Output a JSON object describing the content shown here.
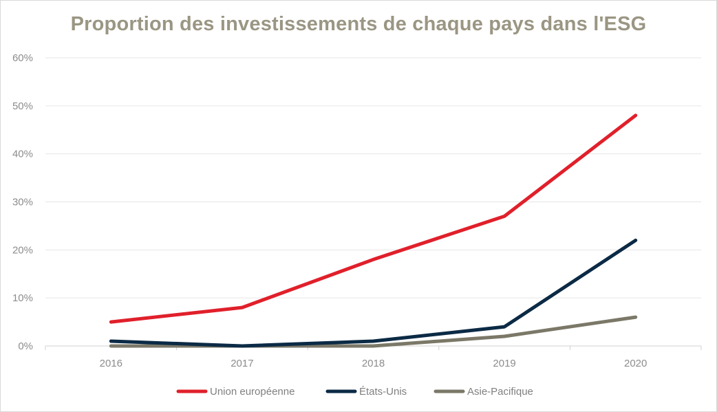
{
  "chart_data": {
    "type": "line",
    "title": "Proportion des investissements de chaque pays dans l'ESG",
    "categories": [
      "2016",
      "2017",
      "2018",
      "2019",
      "2020"
    ],
    "y_ticks": [
      "0%",
      "10%",
      "20%",
      "30%",
      "40%",
      "50%",
      "60%"
    ],
    "ylim": [
      0,
      60
    ],
    "y_unit": "%",
    "grid": true,
    "legend_position": "bottom",
    "series": [
      {
        "name": "Union européenne",
        "color": "#e0202b",
        "values": [
          5,
          8,
          18,
          27,
          48
        ]
      },
      {
        "name": "États-Unis",
        "color": "#0b2a45",
        "values": [
          1,
          0,
          1,
          4,
          22
        ]
      },
      {
        "name": "Asie-Pacifique",
        "color": "#7b7868",
        "values": [
          0,
          0,
          0,
          2,
          6
        ]
      }
    ],
    "colors": {
      "title": "#9a9683",
      "axis_text": "#8c8c8c",
      "grid": "#e6e6e6",
      "axis": "#d0d0d0"
    }
  }
}
